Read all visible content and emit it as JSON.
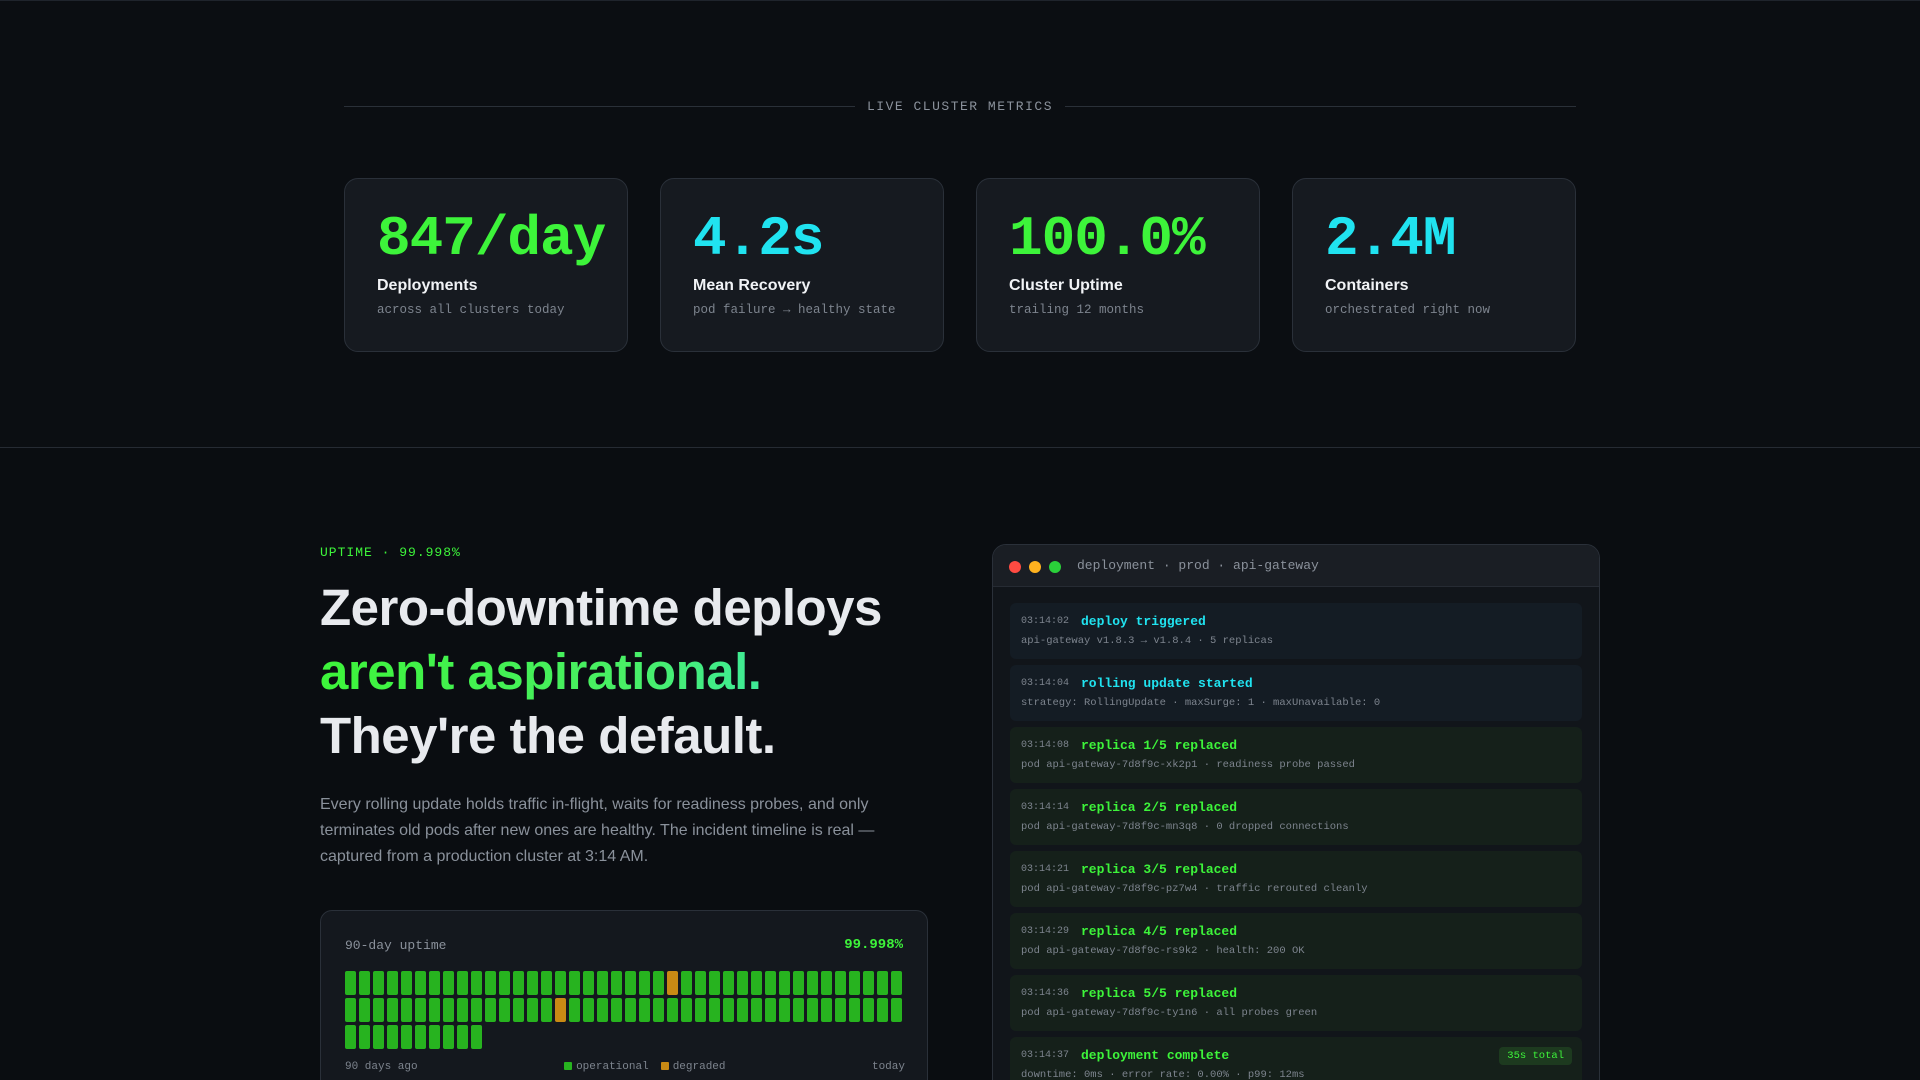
{
  "metrics": {
    "section_label": "LIVE CLUSTER METRICS",
    "cards": [
      {
        "value": "847/day",
        "title": "Deployments",
        "sub": "across all clusters today",
        "color": "#3df43a"
      },
      {
        "value": "4.2s",
        "title": "Mean Recovery",
        "sub": "pod failure → healthy state",
        "color": "#20e3f0"
      },
      {
        "value": "100.0%",
        "title": "Cluster Uptime",
        "sub": "trailing 12 months",
        "color": "#3df43a"
      },
      {
        "value": "2.4M",
        "title": "Containers",
        "sub": "orchestrated right now",
        "color": "#20e3f0"
      }
    ]
  },
  "hero": {
    "eyebrow": "UPTIME · 99.998%",
    "headline_line1": "Zero-downtime deploys",
    "headline_line2": "aren't aspirational.",
    "headline_line3": "They're the default.",
    "body": "Every rolling update holds traffic in-flight, waits for readiness probes, and only terminates old pods after new ones are healthy. The incident timeline is real — captured from a production cluster at 3:14 AM."
  },
  "uptime": {
    "title": "90-day uptime",
    "percent": "99.998%",
    "days": 90,
    "degraded_days": [
      23,
      55
    ],
    "start_label": "90 days ago",
    "end_label": "today",
    "legend_operational": "operational",
    "legend_degraded": "degraded",
    "color_operational": "#27b31f",
    "color_degraded": "#c98a14"
  },
  "terminal": {
    "title": "deployment · prod · api-gateway",
    "entries": [
      {
        "time": "03:14:02",
        "event": "deploy triggered",
        "detail": "api-gateway v1.8.3 → v1.8.4 · 5 replicas",
        "kind": "info"
      },
      {
        "time": "03:14:04",
        "event": "rolling update started",
        "detail": "strategy: RollingUpdate · maxSurge: 1 · maxUnavailable: 0",
        "kind": "info"
      },
      {
        "time": "03:14:08",
        "event": "replica 1/5 replaced",
        "detail": "pod api-gateway-7d8f9c-xk2p1 · readiness probe passed",
        "kind": "success"
      },
      {
        "time": "03:14:14",
        "event": "replica 2/5 replaced",
        "detail": "pod api-gateway-7d8f9c-mn3q8 · 0 dropped connections",
        "kind": "success"
      },
      {
        "time": "03:14:21",
        "event": "replica 3/5 replaced",
        "detail": "pod api-gateway-7d8f9c-pz7w4 · traffic rerouted cleanly",
        "kind": "success"
      },
      {
        "time": "03:14:29",
        "event": "replica 4/5 replaced",
        "detail": "pod api-gateway-7d8f9c-rs9k2 · health: 200 OK",
        "kind": "success"
      },
      {
        "time": "03:14:36",
        "event": "replica 5/5 replaced",
        "detail": "pod api-gateway-7d8f9c-ty1n6 · all probes green",
        "kind": "success"
      },
      {
        "time": "03:14:37",
        "event": "deployment complete",
        "detail": "downtime: 0ms · error rate: 0.00% · p99: 12ms",
        "kind": "success",
        "badge": "35s total"
      }
    ]
  }
}
